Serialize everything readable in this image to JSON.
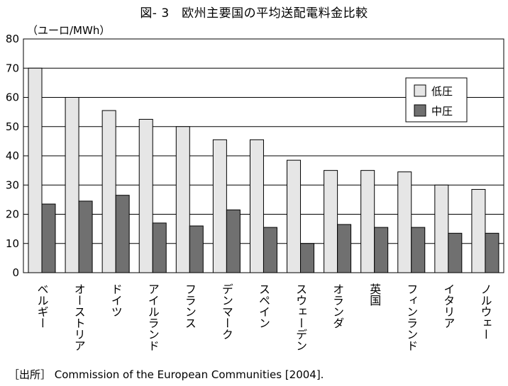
{
  "page_title": "図- 3　欧州主要国の平均送配電料金比較",
  "unit_label": "（ユーロ/MWh）",
  "source": "［出所］ Commission of the European Communities [2004].",
  "chart_data": {
    "type": "bar",
    "title": "図- 3　欧州主要国の平均送配電料金比較",
    "ylabel": "（ユーロ/MWh）",
    "xlabel": "",
    "ylim": [
      0,
      80
    ],
    "yticks": [
      0,
      10,
      20,
      30,
      40,
      50,
      60,
      70,
      80
    ],
    "grid": true,
    "legend": "top-right",
    "categories": [
      "ベルギー",
      "オーストリア",
      "ドイツ",
      "アイルランド",
      "フランス",
      "デンマーク",
      "スペイン",
      "スウェーデン",
      "オランダ",
      "英国",
      "フィンランド",
      "イタリア",
      "ノルウェー"
    ],
    "series": [
      {
        "name": "低圧",
        "color": "#e6e6e6",
        "values": [
          70,
          60,
          55.5,
          52.5,
          50,
          45.5,
          45.5,
          38.5,
          35,
          35,
          34.5,
          30,
          28.5
        ]
      },
      {
        "name": "中圧",
        "color": "#707070",
        "values": [
          23.5,
          24.5,
          26.5,
          17,
          16,
          21.5,
          15.5,
          10,
          16.5,
          15.5,
          15.5,
          13.5,
          13.5
        ]
      }
    ]
  }
}
